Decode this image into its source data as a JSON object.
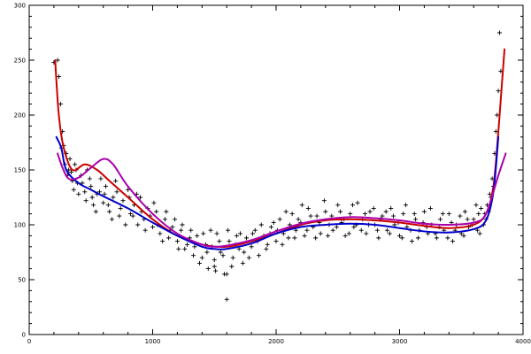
{
  "chart_data": {
    "type": "scatter",
    "title": "",
    "xlabel": "",
    "ylabel": "",
    "xlim": [
      0,
      4000
    ],
    "ylim": [
      0,
      300
    ],
    "x_ticks": [
      0,
      1000,
      2000,
      3000,
      4000
    ],
    "y_ticks": [
      0,
      50,
      100,
      150,
      200,
      250,
      300
    ],
    "x_tick_labels": [
      "0",
      "1000",
      "2000",
      "3000",
      "4000"
    ],
    "y_tick_labels": [
      "0",
      "50",
      "100",
      "150",
      "200",
      "250",
      "300"
    ],
    "grid": false,
    "scatter": {
      "marker": "plus",
      "color": "#000000",
      "points": [
        [
          200,
          248
        ],
        [
          230,
          250
        ],
        [
          240,
          235
        ],
        [
          255,
          210
        ],
        [
          270,
          185
        ],
        [
          280,
          172
        ],
        [
          300,
          165
        ],
        [
          320,
          150
        ],
        [
          330,
          160
        ],
        [
          350,
          140
        ],
        [
          370,
          155
        ],
        [
          390,
          138
        ],
        [
          420,
          145
        ],
        [
          450,
          130
        ],
        [
          470,
          150
        ],
        [
          500,
          135
        ],
        [
          520,
          118
        ],
        [
          550,
          128
        ],
        [
          580,
          142
        ],
        [
          600,
          120
        ],
        [
          620,
          135
        ],
        [
          650,
          112
        ],
        [
          680,
          125
        ],
        [
          700,
          140
        ],
        [
          730,
          108
        ],
        [
          760,
          122
        ],
        [
          800,
          132
        ],
        [
          820,
          110
        ],
        [
          850,
          118
        ],
        [
          880,
          100
        ],
        [
          900,
          125
        ],
        [
          930,
          105
        ],
        [
          960,
          115
        ],
        [
          1000,
          98
        ],
        [
          1030,
          112
        ],
        [
          1060,
          92
        ],
        [
          1100,
          105
        ],
        [
          1130,
          88
        ],
        [
          1160,
          98
        ],
        [
          1200,
          85
        ],
        [
          1230,
          95
        ],
        [
          1260,
          78
        ],
        [
          1300,
          88
        ],
        [
          1330,
          72
        ],
        [
          1360,
          90
        ],
        [
          1400,
          70
        ],
        [
          1430,
          82
        ],
        [
          1450,
          60
        ],
        [
          1480,
          80
        ],
        [
          1500,
          68
        ],
        [
          1520,
          92
        ],
        [
          1550,
          75
        ],
        [
          1580,
          55
        ],
        [
          1600,
          32
        ],
        [
          1620,
          85
        ],
        [
          1650,
          70
        ],
        [
          1680,
          90
        ],
        [
          1700,
          78
        ],
        [
          1730,
          65
        ],
        [
          1760,
          88
        ],
        [
          1800,
          80
        ],
        [
          1830,
          95
        ],
        [
          1860,
          72
        ],
        [
          1900,
          90
        ],
        [
          1930,
          82
        ],
        [
          1960,
          98
        ],
        [
          2000,
          85
        ],
        [
          2030,
          105
        ],
        [
          2060,
          92
        ],
        [
          2100,
          88
        ],
        [
          2130,
          110
        ],
        [
          2160,
          95
        ],
        [
          2200,
          102
        ],
        [
          2230,
          90
        ],
        [
          2260,
          115
        ],
        [
          2300,
          98
        ],
        [
          2330,
          108
        ],
        [
          2360,
          92
        ],
        [
          2400,
          112
        ],
        [
          2430,
          100
        ],
        [
          2460,
          95
        ],
        [
          2500,
          118
        ],
        [
          2530,
          102
        ],
        [
          2560,
          90
        ],
        [
          2600,
          110
        ],
        [
          2630,
          98
        ],
        [
          2660,
          120
        ],
        [
          2700,
          105
        ],
        [
          2730,
          92
        ],
        [
          2760,
          112
        ],
        [
          2800,
          100
        ],
        [
          2830,
          88
        ],
        [
          2860,
          108
        ],
        [
          2900,
          95
        ],
        [
          2930,
          115
        ],
        [
          2960,
          100
        ],
        [
          3000,
          90
        ],
        [
          3030,
          110
        ],
        [
          3060,
          98
        ],
        [
          3100,
          85
        ],
        [
          3130,
          105
        ],
        [
          3160,
          95
        ],
        [
          3200,
          112
        ],
        [
          3230,
          92
        ],
        [
          3260,
          100
        ],
        [
          3300,
          88
        ],
        [
          3330,
          105
        ],
        [
          3360,
          95
        ],
        [
          3400,
          110
        ],
        [
          3430,
          85
        ],
        [
          3460,
          100
        ],
        [
          3500,
          92
        ],
        [
          3530,
          112
        ],
        [
          3560,
          98
        ],
        [
          3600,
          105
        ],
        [
          3630,
          95
        ],
        [
          3660,
          115
        ],
        [
          3700,
          105
        ],
        [
          3730,
          128
        ],
        [
          3750,
          142
        ],
        [
          3770,
          165
        ],
        [
          3780,
          185
        ],
        [
          3800,
          222
        ],
        [
          3810,
          275
        ],
        [
          3820,
          240
        ],
        [
          3790,
          200
        ],
        [
          3760,
          135
        ],
        [
          3710,
          118
        ],
        [
          3680,
          100
        ],
        [
          3640,
          110
        ],
        [
          260,
          170
        ],
        [
          290,
          155
        ],
        [
          310,
          145
        ],
        [
          340,
          148
        ],
        [
          360,
          132
        ],
        [
          380,
          150
        ],
        [
          400,
          128
        ],
        [
          430,
          138
        ],
        [
          460,
          122
        ],
        [
          490,
          142
        ],
        [
          510,
          125
        ],
        [
          540,
          112
        ],
        [
          570,
          130
        ],
        [
          610,
          128
        ],
        [
          640,
          118
        ],
        [
          670,
          105
        ],
        [
          710,
          130
        ],
        [
          740,
          115
        ],
        [
          780,
          100
        ],
        [
          810,
          125
        ],
        [
          840,
          108
        ],
        [
          870,
          128
        ],
        [
          910,
          112
        ],
        [
          940,
          95
        ],
        [
          980,
          108
        ],
        [
          1010,
          120
        ],
        [
          1040,
          100
        ],
        [
          1080,
          85
        ],
        [
          1110,
          112
        ],
        [
          1140,
          95
        ],
        [
          1180,
          105
        ],
        [
          1210,
          78
        ],
        [
          1240,
          100
        ],
        [
          1280,
          82
        ],
        [
          1310,
          95
        ],
        [
          1340,
          80
        ],
        [
          1380,
          65
        ],
        [
          1410,
          92
        ],
        [
          1440,
          75
        ],
        [
          1470,
          95
        ],
        [
          1510,
          58
        ],
        [
          1540,
          85
        ],
        [
          1570,
          72
        ],
        [
          1610,
          95
        ],
        [
          1640,
          62
        ],
        [
          1670,
          82
        ],
        [
          1710,
          92
        ],
        [
          1740,
          75
        ],
        [
          1780,
          70
        ],
        [
          1810,
          92
        ],
        [
          1850,
          85
        ],
        [
          1880,
          100
        ],
        [
          1920,
          78
        ],
        [
          1950,
          92
        ],
        [
          1980,
          102
        ],
        [
          2010,
          95
        ],
        [
          2050,
          82
        ],
        [
          2080,
          112
        ],
        [
          2110,
          100
        ],
        [
          2150,
          88
        ],
        [
          2180,
          105
        ],
        [
          2210,
          118
        ],
        [
          2250,
          95
        ],
        [
          2280,
          108
        ],
        [
          2320,
          88
        ],
        [
          2350,
          102
        ],
        [
          2390,
          122
        ],
        [
          2420,
          90
        ],
        [
          2450,
          108
        ],
        [
          2490,
          98
        ],
        [
          2520,
          112
        ],
        [
          2550,
          105
        ],
        [
          2590,
          92
        ],
        [
          2620,
          118
        ],
        [
          2650,
          100
        ],
        [
          2690,
          95
        ],
        [
          2720,
          110
        ],
        [
          2750,
          100
        ],
        [
          2790,
          115
        ],
        [
          2820,
          95
        ],
        [
          2850,
          105
        ],
        [
          2890,
          112
        ],
        [
          2920,
          92
        ],
        [
          2950,
          108
        ],
        [
          2990,
          102
        ],
        [
          3020,
          88
        ],
        [
          3050,
          118
        ],
        [
          3090,
          95
        ],
        [
          3120,
          110
        ],
        [
          3150,
          88
        ],
        [
          3190,
          102
        ],
        [
          3220,
          98
        ],
        [
          3250,
          115
        ],
        [
          3290,
          92
        ],
        [
          3320,
          98
        ],
        [
          3350,
          110
        ],
        [
          3390,
          88
        ],
        [
          3420,
          102
        ],
        [
          3450,
          95
        ],
        [
          3490,
          108
        ],
        [
          3520,
          90
        ],
        [
          3550,
          105
        ],
        [
          3590,
          100
        ],
        [
          3620,
          118
        ],
        [
          3650,
          92
        ],
        [
          3690,
          110
        ],
        [
          3720,
          112
        ],
        [
          3740,
          125
        ],
        [
          1600,
          55
        ],
        [
          1500,
          62
        ]
      ]
    },
    "series": [
      {
        "color": "#cc0000",
        "values": [
          [
            210,
            250
          ],
          [
            240,
            200
          ],
          [
            280,
            170
          ],
          [
            350,
            150
          ],
          [
            450,
            155
          ],
          [
            550,
            150
          ],
          [
            650,
            140
          ],
          [
            800,
            125
          ],
          [
            1000,
            105
          ],
          [
            1200,
            90
          ],
          [
            1400,
            82
          ],
          [
            1600,
            80
          ],
          [
            1800,
            85
          ],
          [
            2000,
            92
          ],
          [
            2200,
            100
          ],
          [
            2400,
            104
          ],
          [
            2600,
            105
          ],
          [
            2800,
            104
          ],
          [
            3000,
            102
          ],
          [
            3200,
            99
          ],
          [
            3400,
            97
          ],
          [
            3600,
            100
          ],
          [
            3700,
            110
          ],
          [
            3760,
            135
          ],
          [
            3800,
            185
          ],
          [
            3830,
            230
          ],
          [
            3850,
            260
          ]
        ]
      },
      {
        "color": "#0000cc",
        "values": [
          [
            220,
            180
          ],
          [
            260,
            170
          ],
          [
            300,
            150
          ],
          [
            400,
            138
          ],
          [
            500,
            132
          ],
          [
            600,
            126
          ],
          [
            800,
            115
          ],
          [
            1000,
            102
          ],
          [
            1200,
            90
          ],
          [
            1400,
            80
          ],
          [
            1500,
            78
          ],
          [
            1600,
            78
          ],
          [
            1800,
            83
          ],
          [
            2000,
            92
          ],
          [
            2200,
            98
          ],
          [
            2400,
            100
          ],
          [
            2600,
            101
          ],
          [
            2800,
            100
          ],
          [
            3000,
            97
          ],
          [
            3200,
            94
          ],
          [
            3400,
            93
          ],
          [
            3600,
            96
          ],
          [
            3700,
            104
          ],
          [
            3760,
            130
          ],
          [
            3800,
            180
          ]
        ]
      },
      {
        "color": "#aa00aa",
        "values": [
          [
            230,
            165
          ],
          [
            270,
            152
          ],
          [
            320,
            142
          ],
          [
            400,
            143
          ],
          [
            500,
            152
          ],
          [
            600,
            160
          ],
          [
            680,
            155
          ],
          [
            800,
            135
          ],
          [
            1000,
            110
          ],
          [
            1200,
            92
          ],
          [
            1400,
            82
          ],
          [
            1500,
            80
          ],
          [
            1600,
            81
          ],
          [
            1800,
            86
          ],
          [
            2000,
            94
          ],
          [
            2200,
            101
          ],
          [
            2400,
            105
          ],
          [
            2600,
            107
          ],
          [
            2800,
            106
          ],
          [
            3000,
            104
          ],
          [
            3200,
            101
          ],
          [
            3400,
            100
          ],
          [
            3600,
            102
          ],
          [
            3700,
            110
          ],
          [
            3800,
            145
          ],
          [
            3860,
            165
          ]
        ]
      }
    ]
  }
}
